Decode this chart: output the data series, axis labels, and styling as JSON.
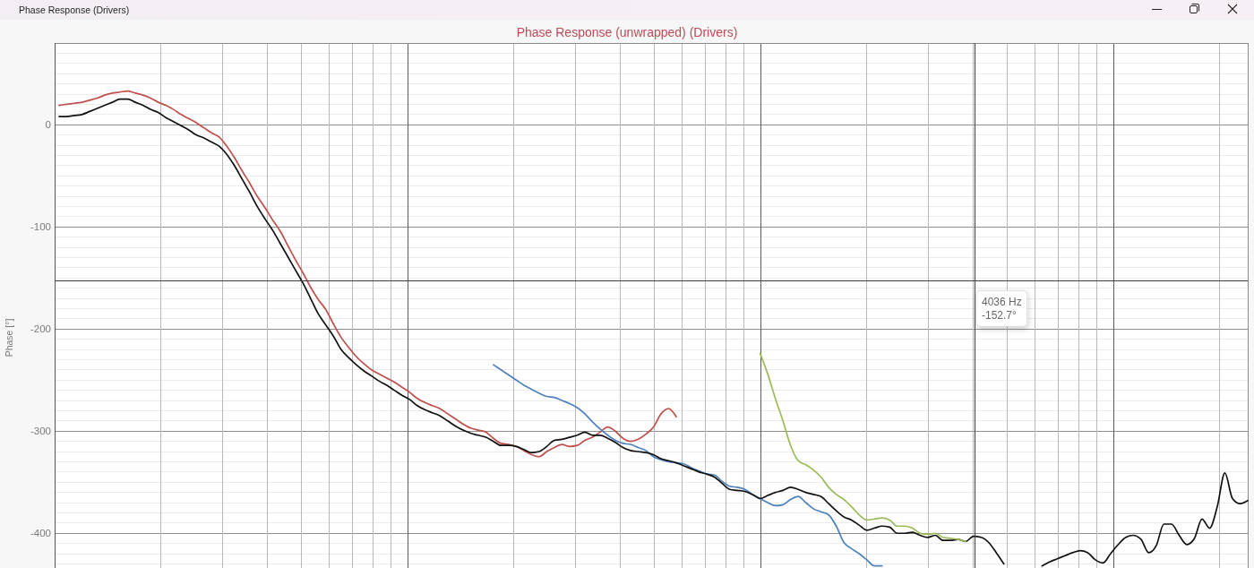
{
  "chart_data": {
    "type": "line",
    "title": "Phase Response (unwrapped) (Drivers)",
    "ylabel": "Phase [°]",
    "annotations": [
      "Phase Response (Drivers)",
      "4036 Hz"
    ],
    "grid": true,
    "categories": [
      null,
      null,
      null,
      null,
      null,
      null,
      null,
      null,
      null,
      null,
      null,
      null,
      null,
      null,
      null,
      null,
      null,
      null,
      null,
      null,
      null,
      null,
      null,
      null,
      null,
      null,
      null,
      null,
      null,
      null,
      null,
      null,
      null,
      null,
      null,
      null,
      null,
      null,
      null,
      null,
      null,
      null,
      null,
      null,
      null,
      null,
      null,
      null,
      null,
      null,
      null,
      null,
      null,
      null,
      null,
      null,
      null,
      null,
      null,
      null,
      null,
      null,
      null,
      null,
      null,
      null,
      null,
      null,
      null,
      null,
      null,
      null,
      null,
      null,
      null,
      null,
      null,
      null,
      null,
      null,
      null,
      null,
      null,
      null,
      null,
      null,
      null,
      null,
      null,
      null,
      null,
      null,
      null,
      null,
      null,
      null,
      null,
      null,
      null,
      null,
      null,
      null,
      null,
      null,
      null,
      null,
      null,
      null,
      null,
      null,
      null,
      null,
      null,
      null,
      null,
      null,
      null,
      null,
      null,
      null,
      null,
      null,
      null,
      null,
      null,
      null,
      null,
      null,
      null,
      null,
      null,
      null,
      null,
      null,
      null,
      null,
      null,
      null,
      null,
      null,
      null,
      null,
      null,
      null,
      null,
      null,
      null,
      null,
      null,
      null,
      null,
      null,
      null,
      null,
      null,
      null,
      null
    ],
    "ylim": [
      -434,
      80
    ],
    "yticks": [
      {
        "value": 80,
        "label": null
      },
      {
        "value": 70,
        "label": null
      },
      {
        "value": 60,
        "label": null
      },
      {
        "value": 50,
        "label": null
      },
      {
        "value": 40,
        "label": null
      },
      {
        "value": 30,
        "label": null
      },
      {
        "value": 20,
        "label": null
      },
      {
        "value": 10,
        "label": null
      },
      0,
      {
        "value": -10,
        "label": null
      },
      {
        "value": -20,
        "label": null
      },
      {
        "value": -30,
        "label": null
      },
      {
        "value": -40,
        "label": null
      },
      {
        "value": -50,
        "label": null
      },
      {
        "value": -60,
        "label": null
      },
      {
        "value": -70,
        "label": null
      },
      {
        "value": -80,
        "label": null
      },
      {
        "value": -90,
        "label": null
      },
      -100,
      {
        "value": -110,
        "label": null
      },
      {
        "value": -120,
        "label": null
      },
      {
        "value": -130,
        "label": null
      },
      {
        "value": -140,
        "label": null
      },
      {
        "value": -150,
        "label": null
      },
      {
        "value": -160,
        "label": null
      },
      {
        "value": -170,
        "label": null
      },
      {
        "value": -180,
        "label": null
      },
      {
        "value": -190,
        "label": null
      },
      -200,
      {
        "value": -210,
        "label": null
      },
      {
        "value": -220,
        "label": null
      },
      {
        "value": -230,
        "label": null
      },
      {
        "value": -240,
        "label": null
      },
      {
        "value": -250,
        "label": null
      },
      {
        "value": -260,
        "label": null
      },
      {
        "value": -270,
        "label": null
      },
      {
        "value": -280,
        "label": null
      },
      {
        "value": -290,
        "label": null
      },
      -300,
      {
        "value": -310,
        "label": null
      },
      {
        "value": -320,
        "label": null
      },
      {
        "value": -330,
        "label": null
      },
      {
        "value": -340,
        "label": null
      },
      {
        "value": -350,
        "label": null
      },
      {
        "value": -360,
        "label": null
      },
      {
        "value": -370,
        "label": null
      },
      {
        "value": -380,
        "label": null
      },
      {
        "value": -390,
        "label": null
      },
      -400,
      {
        "value": -410,
        "label": null
      },
      {
        "value": -420,
        "label": null
      },
      {
        "value": -430,
        "label": null
      }
    ],
    "ref_lines": [
      {
        "axis": "y",
        "value": -152.7,
        "label": "-152.7°",
        "color": "#3c3c3c"
      }
    ],
    "series": [
      {
        "color": "#c0504d",
        "values": [
          19,
          20,
          21,
          22,
          24,
          26,
          29,
          31,
          32,
          33,
          31,
          29,
          26,
          22,
          19,
          15,
          10,
          6,
          2,
          -3,
          -8,
          -12,
          -21,
          -32,
          -45,
          -57,
          -70,
          -81,
          -93,
          -104,
          -118,
          -132,
          -145,
          -159,
          -171,
          -181,
          -195,
          -208,
          -218,
          -227,
          -234,
          -240,
          -244,
          -248,
          -252,
          -257,
          -262,
          -268,
          -272,
          -275,
          -278,
          -283,
          -288,
          -293,
          -297,
          -299,
          -301,
          -307,
          -312,
          -313,
          -315,
          -319,
          -323,
          -325,
          -320,
          -316,
          -313,
          -315,
          -314,
          -309,
          -306,
          -301,
          -296,
          -300,
          -307,
          -310,
          -308,
          -303,
          -296,
          -283,
          -278,
          -286,
          null,
          null,
          null,
          null,
          null,
          null,
          null,
          null,
          null,
          null,
          null,
          null,
          null,
          null,
          null,
          null,
          null,
          null,
          null,
          null,
          null,
          null,
          null,
          null,
          null,
          null,
          null,
          null,
          null,
          null,
          null,
          null,
          null,
          null,
          null,
          null,
          null,
          null,
          null,
          null,
          null,
          null,
          null,
          null,
          null,
          null,
          null,
          null,
          null,
          null,
          null,
          null,
          null,
          null,
          null,
          null,
          null,
          null,
          null,
          null,
          null,
          null,
          null,
          null,
          null,
          null,
          null,
          null,
          null,
          null,
          null,
          null,
          null,
          null,
          null
        ]
      },
      {
        "color": "#4f81bd",
        "values": [
          null,
          null,
          null,
          null,
          null,
          null,
          null,
          null,
          null,
          null,
          null,
          null,
          null,
          null,
          null,
          null,
          null,
          null,
          null,
          null,
          null,
          null,
          null,
          null,
          null,
          null,
          null,
          null,
          null,
          null,
          null,
          null,
          null,
          null,
          null,
          null,
          null,
          null,
          null,
          null,
          null,
          null,
          null,
          null,
          null,
          null,
          null,
          null,
          null,
          null,
          null,
          null,
          null,
          null,
          null,
          null,
          null,
          -235,
          -240,
          -245,
          -250,
          -255,
          -259,
          -263,
          -266,
          -267,
          -270,
          -273,
          -277,
          -283,
          -291,
          -298,
          -304,
          -309,
          -312,
          -313,
          -316,
          -319,
          -325,
          -328,
          -330,
          -331,
          -332,
          -336,
          -339,
          -342,
          -343,
          -349,
          -354,
          -355,
          -357,
          -362,
          -366,
          -370,
          -373,
          -372,
          -367,
          -364,
          -370,
          -376,
          -379,
          -382,
          -393,
          -409,
          -415,
          -420,
          -426,
          -432,
          -432,
          null,
          null,
          null,
          null,
          null,
          null,
          null,
          null,
          null,
          null,
          null,
          null,
          null,
          null,
          null,
          null,
          null,
          null,
          null,
          null,
          null,
          null,
          null,
          null,
          null,
          null,
          null,
          null,
          null,
          null,
          null,
          null,
          null,
          null,
          null,
          null,
          null,
          null,
          null,
          null,
          null,
          null,
          null,
          null,
          null,
          null,
          null,
          null
        ]
      },
      {
        "color": "#111111",
        "values": [
          8,
          8,
          9,
          10,
          13,
          16,
          19,
          22,
          25,
          25,
          22,
          19,
          15,
          12,
          7,
          3,
          -1,
          -5,
          -10,
          -13,
          -17,
          -21,
          -29,
          -40,
          -53,
          -66,
          -80,
          -92,
          -103,
          -116,
          -129,
          -142,
          -155,
          -170,
          -185,
          -196,
          -207,
          -220,
          -228,
          -235,
          -241,
          -246,
          -251,
          -255,
          -260,
          -265,
          -269,
          -275,
          -279,
          -282,
          -285,
          -290,
          -295,
          -299,
          -302,
          -304,
          -306,
          -310,
          -314,
          -314,
          -315,
          -318,
          -321,
          -320,
          -315,
          -309,
          -308,
          -306,
          -304,
          -301,
          -304,
          -304,
          -307,
          -311,
          -316,
          -319,
          -320,
          -321,
          -323,
          -327,
          -329,
          -331,
          -334,
          -337,
          -340,
          -342,
          -345,
          -351,
          -357,
          -358,
          -359,
          -362,
          -366,
          -363,
          -360,
          -358,
          -355,
          -357,
          -360,
          -362,
          -364,
          -371,
          -378,
          -384,
          -387,
          -392,
          -397,
          -395,
          -393,
          -394,
          -400,
          -400,
          -399,
          -402,
          -404,
          -402,
          -407,
          -407,
          -406,
          -408,
          -403,
          -404,
          -409,
          -419,
          -430,
          null,
          null,
          null,
          null,
          null,
          null,
          null,
          null,
          null,
          null,
          null,
          null,
          null,
          null,
          null,
          null,
          null,
          null,
          null,
          null,
          null,
          null,
          null,
          null,
          null,
          null,
          null,
          null,
          null,
          null,
          null,
          null
        ]
      },
      {
        "color": "#111111",
        "values": [
          null,
          null,
          null,
          null,
          null,
          null,
          null,
          null,
          null,
          null,
          null,
          null,
          null,
          null,
          null,
          null,
          null,
          null,
          null,
          null,
          null,
          null,
          null,
          null,
          null,
          null,
          null,
          null,
          null,
          null,
          null,
          null,
          null,
          null,
          null,
          null,
          null,
          null,
          null,
          null,
          null,
          null,
          null,
          null,
          null,
          null,
          null,
          null,
          null,
          null,
          null,
          null,
          null,
          null,
          null,
          null,
          null,
          null,
          null,
          null,
          null,
          null,
          null,
          null,
          null,
          null,
          null,
          null,
          null,
          null,
          null,
          null,
          null,
          null,
          null,
          null,
          null,
          null,
          null,
          null,
          null,
          null,
          null,
          null,
          null,
          null,
          null,
          null,
          null,
          null,
          null,
          null,
          null,
          null,
          null,
          null,
          null,
          null,
          null,
          null,
          null,
          null,
          null,
          null,
          null,
          null,
          null,
          null,
          null,
          null,
          null,
          null,
          null,
          null,
          null,
          null,
          null,
          null,
          null,
          null,
          null,
          null,
          null,
          null,
          null,
          null,
          null,
          null,
          null,
          -432,
          -428,
          -425,
          -422,
          -419,
          -417,
          -419,
          -426,
          -429,
          -420,
          -411,
          -404,
          -402,
          -406,
          -419,
          -412,
          -391,
          -391,
          -402,
          -411,
          -405,
          -386,
          -395,
          -374,
          -341,
          -366,
          -371,
          -368
        ]
      },
      {
        "color": "#9bbb59",
        "values": [
          null,
          null,
          null,
          null,
          null,
          null,
          null,
          null,
          null,
          null,
          null,
          null,
          null,
          null,
          null,
          null,
          null,
          null,
          null,
          null,
          null,
          null,
          null,
          null,
          null,
          null,
          null,
          null,
          null,
          null,
          null,
          null,
          null,
          null,
          null,
          null,
          null,
          null,
          null,
          null,
          null,
          null,
          null,
          null,
          null,
          null,
          null,
          null,
          null,
          null,
          null,
          null,
          null,
          null,
          null,
          null,
          null,
          null,
          null,
          null,
          null,
          null,
          null,
          null,
          null,
          null,
          null,
          null,
          null,
          null,
          null,
          null,
          null,
          null,
          null,
          null,
          null,
          null,
          null,
          null,
          null,
          null,
          null,
          null,
          null,
          null,
          null,
          null,
          null,
          null,
          null,
          null,
          -224,
          -244,
          -268,
          -290,
          -314,
          -329,
          -333,
          -338,
          -345,
          -355,
          -362,
          -367,
          -374,
          -382,
          -387,
          -386,
          -385,
          -387,
          -393,
          -393,
          -395,
          -400,
          -401,
          -400,
          -404,
          -405,
          -406,
          -408,
          null,
          null,
          null,
          null,
          null,
          null,
          null,
          null,
          null,
          null,
          null,
          null,
          null,
          null,
          null,
          null,
          null,
          null,
          null,
          null,
          null,
          null,
          null,
          null,
          null,
          null,
          null,
          null,
          null,
          null,
          null,
          null,
          null,
          null,
          null,
          null,
          null
        ]
      }
    ]
  }
}
